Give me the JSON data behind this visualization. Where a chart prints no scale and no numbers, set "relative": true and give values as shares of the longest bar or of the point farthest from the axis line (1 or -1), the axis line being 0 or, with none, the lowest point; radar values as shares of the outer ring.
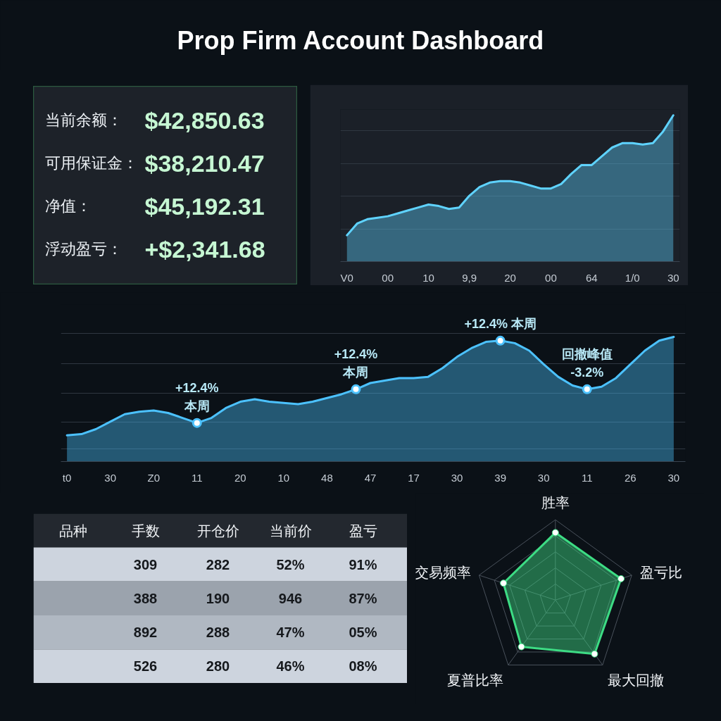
{
  "chart_data": [
    {
      "type": "other",
      "title": "Prop Firm Account Dashboard",
      "annotations": [
        "当前余额：",
        "$42,850.63",
        "可用保证金：",
        "$38,210.47",
        "净值：",
        "$45,192.31",
        "浮动盈亏：",
        "+$2,341.68"
      ]
    },
    {
      "type": "area",
      "relative": true,
      "grid": "y",
      "categories": [
        "V0",
        null,
        null,
        null,
        "00",
        null,
        null,
        null,
        "10",
        null,
        null,
        null,
        "9,9",
        null,
        null,
        null,
        "20",
        null,
        null,
        null,
        "00",
        null,
        null,
        null,
        "64",
        null,
        null,
        null,
        "1/0",
        null,
        null,
        null,
        "30"
      ],
      "series": [
        {
          "color": "#5fd3ff",
          "values": [
            0.18,
            0.26,
            0.29,
            0.3,
            0.31,
            0.33,
            0.35,
            0.37,
            0.39,
            0.38,
            0.36,
            0.37,
            0.45,
            0.51,
            0.54,
            0.55,
            0.55,
            0.54,
            0.52,
            0.5,
            0.5,
            0.53,
            0.6,
            0.66,
            0.66,
            0.72,
            0.78,
            0.81,
            0.81,
            0.8,
            0.81,
            0.89,
            1.0
          ]
        }
      ]
    },
    {
      "type": "area",
      "relative": true,
      "grid": "y",
      "categories": [
        "t0",
        null,
        null,
        "30",
        null,
        null,
        "Z0",
        null,
        null,
        "11",
        null,
        null,
        "20",
        null,
        null,
        "10",
        null,
        null,
        "48",
        null,
        null,
        "47",
        null,
        null,
        "17",
        null,
        null,
        "30",
        null,
        null,
        "39",
        null,
        null,
        "30",
        null,
        null,
        "11",
        null,
        null,
        "26",
        null,
        null,
        "30"
      ],
      "series": [
        {
          "color": "#4cc2ff",
          "values": [
            0.21,
            0.22,
            0.26,
            0.32,
            0.38,
            0.4,
            0.41,
            0.39,
            0.35,
            0.31,
            0.35,
            0.43,
            0.48,
            0.5,
            0.48,
            0.47,
            0.46,
            0.48,
            0.51,
            0.54,
            0.58,
            0.63,
            0.65,
            0.67,
            0.67,
            0.68,
            0.75,
            0.84,
            0.91,
            0.96,
            0.97,
            0.95,
            0.89,
            0.78,
            0.68,
            0.61,
            0.58,
            0.6,
            0.67,
            0.78,
            0.89,
            0.97,
            1.0
          ]
        }
      ],
      "annotations": [
        {
          "text": "+12.4%\n本周",
          "x": "11",
          "y": 0.31
        },
        {
          "text": "+12.4%\n本周",
          "y": 0.58
        },
        {
          "text": "+12.4% 本周",
          "x": "39",
          "y": 0.97
        },
        {
          "text": "回撤峰值\n-3.2%",
          "y": 0.58
        }
      ]
    },
    {
      "type": "other",
      "categories": [
        "品种",
        "手数",
        "开仓价",
        "当前价",
        "盈亏"
      ],
      "cell_labels": [
        [
          null,
          "309",
          "282",
          "52%",
          "91%"
        ],
        [
          null,
          "388",
          "190",
          "946",
          "87%"
        ],
        [
          null,
          "892",
          "288",
          "47%",
          "05%"
        ],
        [
          null,
          "526",
          "280",
          "46%",
          "08%"
        ]
      ]
    },
    {
      "type": "radar",
      "relative": true,
      "grid": true,
      "marker": "circle",
      "categories": [
        "胜率",
        "盈亏比",
        "最大回撤",
        "夏普比率",
        "交易频率"
      ],
      "series": [
        {
          "color": "#3ddc84",
          "values": [
            0.84,
            0.86,
            0.83,
            0.72,
            0.68
          ]
        }
      ]
    }
  ]
}
